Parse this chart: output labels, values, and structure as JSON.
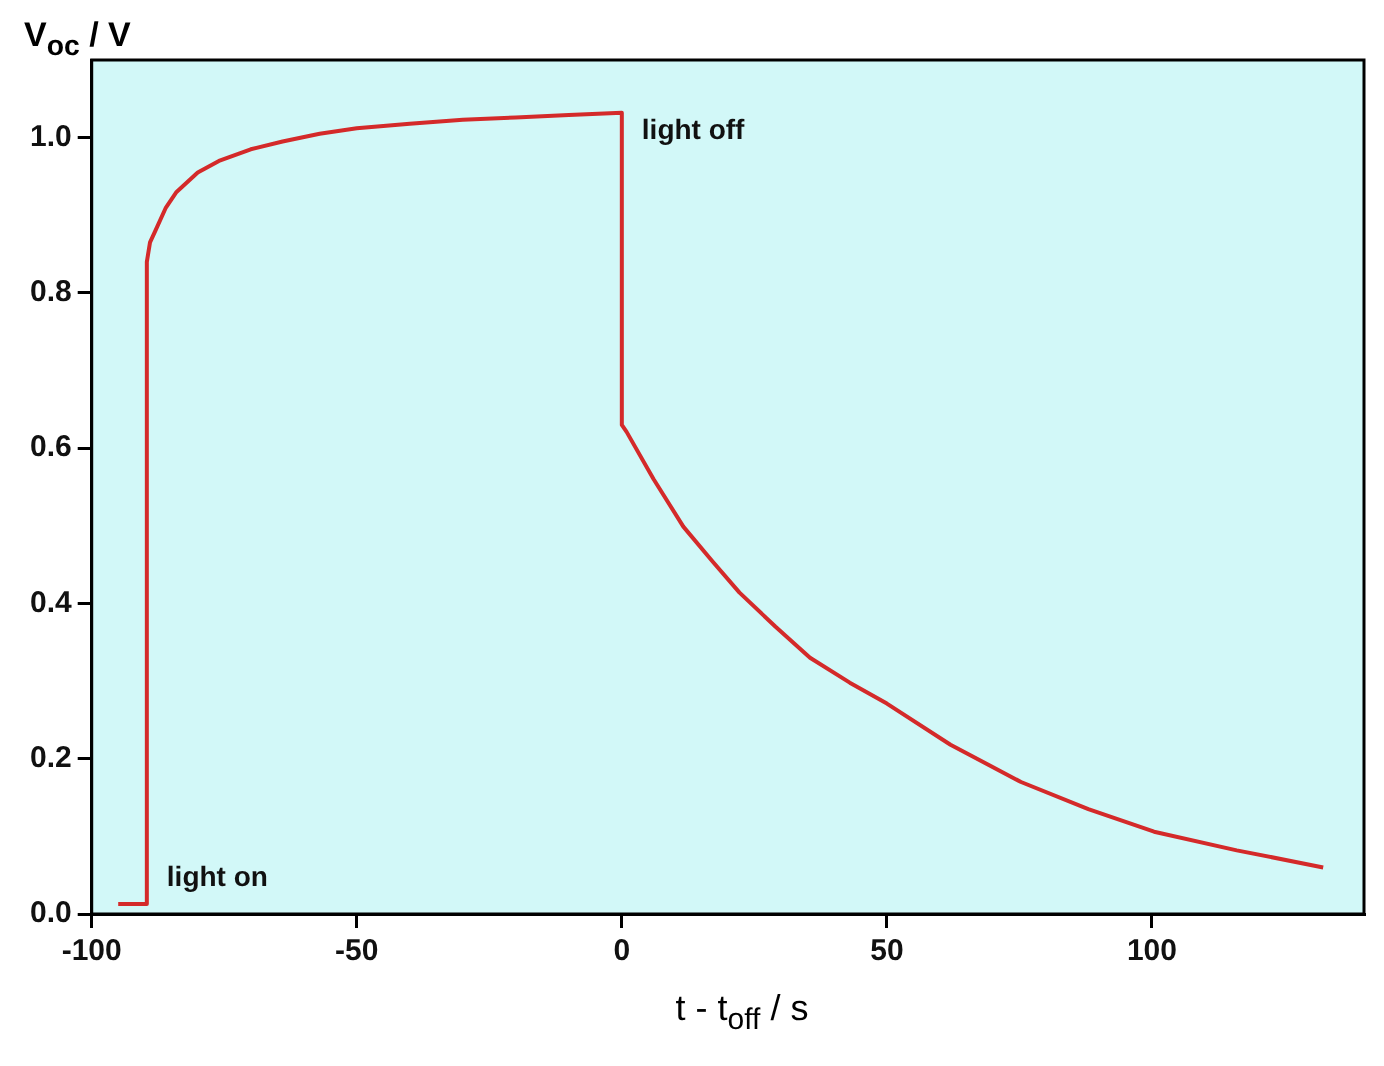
{
  "chart_data": {
    "type": "line",
    "xlabel": "t - t$_{off}$ / s",
    "ylabel": "V$_{oc}$ / V",
    "series": [
      {
        "color": "#d42a2a",
        "x": [
          -95,
          -89.6,
          -89.6,
          -89,
          -88,
          -86,
          -84,
          -80,
          -76,
          -70,
          -64,
          -57,
          -50,
          -40,
          -30,
          -20,
          -10,
          0,
          0,
          0.9,
          6,
          11.6,
          17,
          22.2,
          29,
          35.5,
          43,
          50,
          62,
          75.3,
          88,
          100.4,
          116,
          132.3
        ],
        "values": [
          0.013,
          0.013,
          0.84,
          0.865,
          0.88,
          0.91,
          0.93,
          0.955,
          0.97,
          0.985,
          0.995,
          1.005,
          1.012,
          1.018,
          1.023,
          1.026,
          1.029,
          1.032,
          0.63,
          0.621,
          0.56,
          0.499,
          0.455,
          0.414,
          0.37,
          0.33,
          0.298,
          0.271,
          0.218,
          0.17,
          0.135,
          0.106,
          0.082,
          0.06
        ]
      }
    ],
    "xlim": [
      -100,
      140
    ],
    "xticks": [
      -100,
      -50,
      0,
      50,
      100
    ],
    "ylim": [
      0,
      1.1
    ],
    "yticks": [
      {
        "value": 0,
        "label": "0.0"
      },
      0.2,
      0.4,
      0.6,
      0.8,
      {
        "value": 1,
        "label": "1.0"
      }
    ],
    "marker": "none",
    "line_style": "solid",
    "grid": false,
    "legend": false,
    "annotations": [
      {
        "text": "light on",
        "x": -89.6,
        "y": 0.013
      },
      {
        "text": "light off",
        "x": 0,
        "y": 1.032
      }
    ]
  }
}
